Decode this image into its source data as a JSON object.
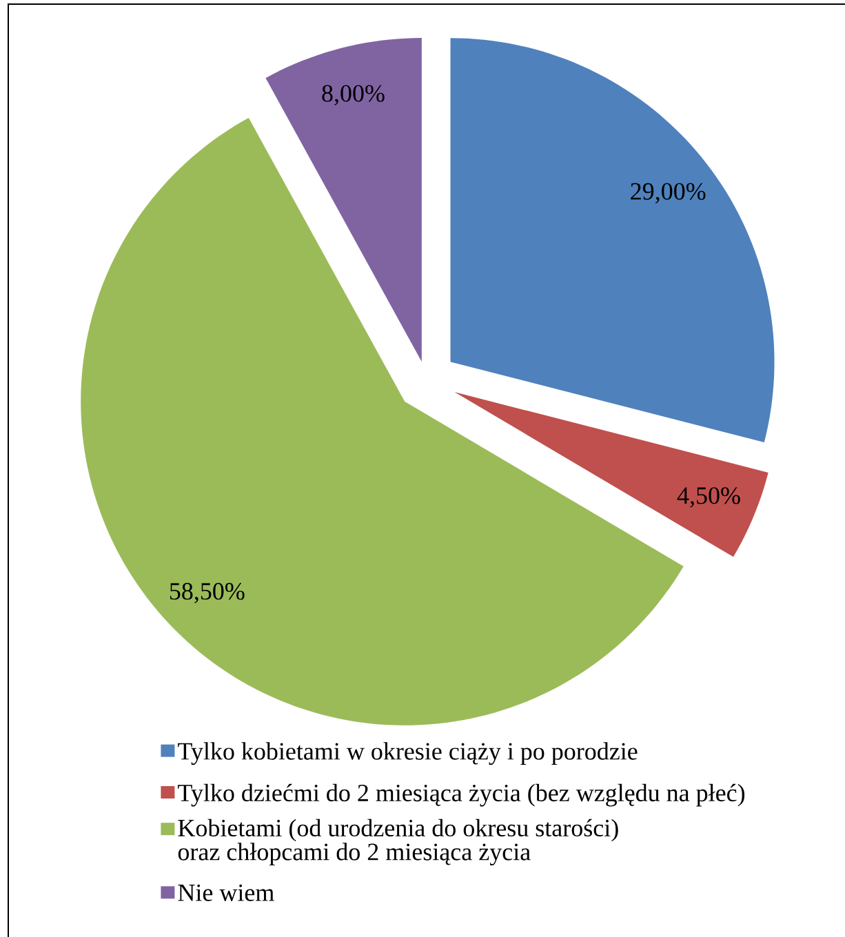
{
  "chart_data": {
    "type": "pie",
    "categories": [
      "Tylko kobietami w okresie ciąży i po porodzie",
      "Tylko dziećmi do 2 miesiąca życia (bez względu na płeć)",
      "Kobietami (od urodzenia do okresu starości) oraz chłopcami do 2 miesiąca życia",
      "Nie wiem"
    ],
    "values": [
      29,
      4.5,
      58.5,
      8
    ],
    "colors": [
      "#4f81bd",
      "#c0504d",
      "#9bbb59",
      "#8064a2"
    ],
    "value_labels": [
      "29,00%",
      "4,50%",
      "58,50%",
      "8,00%"
    ],
    "legend": "bottom"
  }
}
